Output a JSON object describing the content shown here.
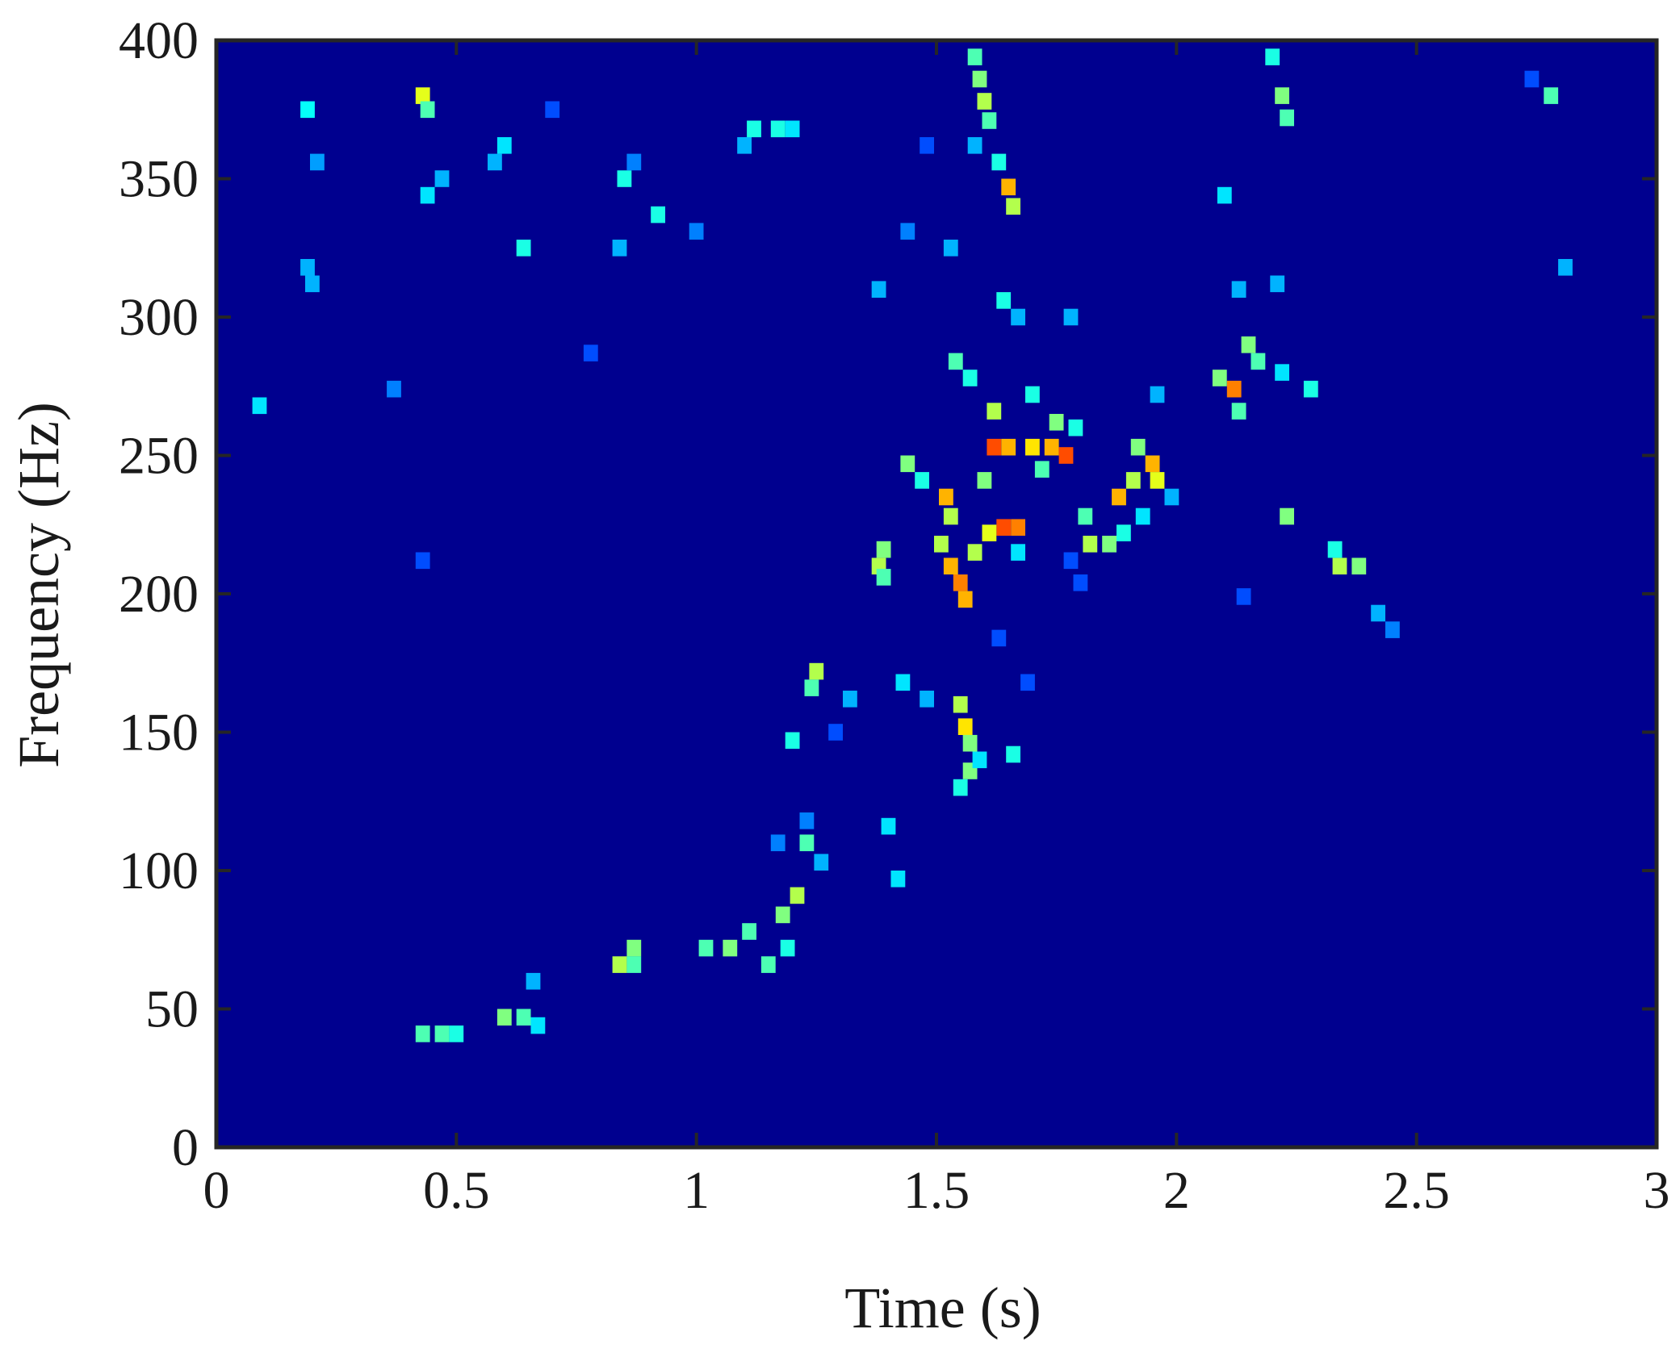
{
  "chart_data": {
    "type": "heatmap",
    "title": "",
    "xlabel": "Time (s)",
    "ylabel": "Frequency (Hz)",
    "xlim": [
      0,
      3
    ],
    "ylim": [
      0,
      400
    ],
    "x_ticks": [
      "0",
      "0.5",
      "1",
      "1.5",
      "2",
      "2.5",
      "3"
    ],
    "y_ticks": [
      "0",
      "50",
      "100",
      "150",
      "200",
      "250",
      "300",
      "350",
      "400"
    ],
    "x_tick_values": [
      0,
      0.5,
      1,
      1.5,
      2,
      2.5,
      3
    ],
    "y_tick_values": [
      0,
      50,
      100,
      150,
      200,
      250,
      300,
      350,
      400
    ],
    "colormap": "jet",
    "background_color": "#00008f",
    "cell_size": {
      "time_s": 0.03,
      "freq_hz": 6
    },
    "cells": [
      {
        "t": 0.09,
        "f": 268,
        "v": 0.35
      },
      {
        "t": 0.19,
        "f": 375,
        "v": 0.38
      },
      {
        "t": 0.19,
        "f": 318,
        "v": 0.3
      },
      {
        "t": 0.2,
        "f": 312,
        "v": 0.3
      },
      {
        "t": 0.21,
        "f": 356,
        "v": 0.28
      },
      {
        "t": 0.37,
        "f": 274,
        "v": 0.25
      },
      {
        "t": 0.43,
        "f": 380,
        "v": 0.6
      },
      {
        "t": 0.44,
        "f": 375,
        "v": 0.45
      },
      {
        "t": 0.44,
        "f": 344,
        "v": 0.35
      },
      {
        "t": 0.47,
        "f": 350,
        "v": 0.3
      },
      {
        "t": 0.43,
        "f": 212,
        "v": 0.2
      },
      {
        "t": 0.58,
        "f": 356,
        "v": 0.3
      },
      {
        "t": 0.6,
        "f": 362,
        "v": 0.35
      },
      {
        "t": 0.64,
        "f": 325,
        "v": 0.4
      },
      {
        "t": 0.7,
        "f": 375,
        "v": 0.2
      },
      {
        "t": 0.85,
        "f": 350,
        "v": 0.4
      },
      {
        "t": 0.87,
        "f": 356,
        "v": 0.25
      },
      {
        "t": 0.92,
        "f": 337,
        "v": 0.4
      },
      {
        "t": 0.84,
        "f": 325,
        "v": 0.3
      },
      {
        "t": 0.78,
        "f": 287,
        "v": 0.2
      },
      {
        "t": 1.0,
        "f": 331,
        "v": 0.25
      },
      {
        "t": 1.1,
        "f": 362,
        "v": 0.3
      },
      {
        "t": 1.12,
        "f": 368,
        "v": 0.4
      },
      {
        "t": 1.17,
        "f": 368,
        "v": 0.4
      },
      {
        "t": 1.2,
        "f": 368,
        "v": 0.35
      },
      {
        "t": 0.43,
        "f": 41,
        "v": 0.45
      },
      {
        "t": 0.47,
        "f": 41,
        "v": 0.45
      },
      {
        "t": 0.5,
        "f": 41,
        "v": 0.4
      },
      {
        "t": 0.6,
        "f": 47,
        "v": 0.5
      },
      {
        "t": 0.64,
        "f": 47,
        "v": 0.45
      },
      {
        "t": 0.67,
        "f": 44,
        "v": 0.35
      },
      {
        "t": 0.66,
        "f": 60,
        "v": 0.3
      },
      {
        "t": 0.84,
        "f": 66,
        "v": 0.55
      },
      {
        "t": 0.87,
        "f": 72,
        "v": 0.5
      },
      {
        "t": 0.87,
        "f": 66,
        "v": 0.45
      },
      {
        "t": 1.02,
        "f": 72,
        "v": 0.45
      },
      {
        "t": 1.07,
        "f": 72,
        "v": 0.5
      },
      {
        "t": 1.11,
        "f": 78,
        "v": 0.45
      },
      {
        "t": 1.15,
        "f": 66,
        "v": 0.45
      },
      {
        "t": 1.18,
        "f": 84,
        "v": 0.5
      },
      {
        "t": 1.21,
        "f": 91,
        "v": 0.55
      },
      {
        "t": 1.19,
        "f": 72,
        "v": 0.4
      },
      {
        "t": 1.23,
        "f": 110,
        "v": 0.45
      },
      {
        "t": 1.26,
        "f": 103,
        "v": 0.3
      },
      {
        "t": 1.2,
        "f": 147,
        "v": 0.4
      },
      {
        "t": 1.25,
        "f": 172,
        "v": 0.55
      },
      {
        "t": 1.24,
        "f": 166,
        "v": 0.45
      },
      {
        "t": 1.32,
        "f": 162,
        "v": 0.3
      },
      {
        "t": 1.4,
        "f": 116,
        "v": 0.35
      },
      {
        "t": 1.42,
        "f": 97,
        "v": 0.35
      },
      {
        "t": 1.39,
        "f": 216,
        "v": 0.5
      },
      {
        "t": 1.38,
        "f": 210,
        "v": 0.55
      },
      {
        "t": 1.39,
        "f": 206,
        "v": 0.45
      },
      {
        "t": 1.43,
        "f": 168,
        "v": 0.35
      },
      {
        "t": 1.48,
        "f": 162,
        "v": 0.3
      },
      {
        "t": 1.44,
        "f": 247,
        "v": 0.5
      },
      {
        "t": 1.47,
        "f": 241,
        "v": 0.4
      },
      {
        "t": 1.52,
        "f": 235,
        "v": 0.7
      },
      {
        "t": 1.53,
        "f": 228,
        "v": 0.55
      },
      {
        "t": 1.51,
        "f": 218,
        "v": 0.55
      },
      {
        "t": 1.53,
        "f": 210,
        "v": 0.7
      },
      {
        "t": 1.55,
        "f": 204,
        "v": 0.75
      },
      {
        "t": 1.56,
        "f": 198,
        "v": 0.7
      },
      {
        "t": 1.58,
        "f": 215,
        "v": 0.55
      },
      {
        "t": 1.54,
        "f": 284,
        "v": 0.45
      },
      {
        "t": 1.57,
        "f": 278,
        "v": 0.4
      },
      {
        "t": 1.55,
        "f": 160,
        "v": 0.55
      },
      {
        "t": 1.56,
        "f": 152,
        "v": 0.65
      },
      {
        "t": 1.57,
        "f": 146,
        "v": 0.5
      },
      {
        "t": 1.57,
        "f": 136,
        "v": 0.5
      },
      {
        "t": 1.55,
        "f": 130,
        "v": 0.4
      },
      {
        "t": 1.59,
        "f": 140,
        "v": 0.35
      },
      {
        "t": 1.66,
        "f": 142,
        "v": 0.4
      },
      {
        "t": 1.6,
        "f": 241,
        "v": 0.5
      },
      {
        "t": 1.62,
        "f": 253,
        "v": 0.8
      },
      {
        "t": 1.65,
        "f": 253,
        "v": 0.7
      },
      {
        "t": 1.62,
        "f": 266,
        "v": 0.55
      },
      {
        "t": 1.64,
        "f": 224,
        "v": 0.8
      },
      {
        "t": 1.67,
        "f": 224,
        "v": 0.75
      },
      {
        "t": 1.61,
        "f": 222,
        "v": 0.6
      },
      {
        "t": 1.67,
        "f": 215,
        "v": 0.35
      },
      {
        "t": 1.7,
        "f": 253,
        "v": 0.65
      },
      {
        "t": 1.74,
        "f": 253,
        "v": 0.7
      },
      {
        "t": 1.77,
        "f": 250,
        "v": 0.8
      },
      {
        "t": 1.72,
        "f": 245,
        "v": 0.45
      },
      {
        "t": 1.75,
        "f": 262,
        "v": 0.5
      },
      {
        "t": 1.79,
        "f": 260,
        "v": 0.4
      },
      {
        "t": 1.7,
        "f": 272,
        "v": 0.4
      },
      {
        "t": 1.81,
        "f": 228,
        "v": 0.45
      },
      {
        "t": 1.82,
        "f": 218,
        "v": 0.55
      },
      {
        "t": 1.86,
        "f": 218,
        "v": 0.5
      },
      {
        "t": 1.88,
        "f": 235,
        "v": 0.7
      },
      {
        "t": 1.91,
        "f": 241,
        "v": 0.55
      },
      {
        "t": 1.95,
        "f": 247,
        "v": 0.7
      },
      {
        "t": 1.92,
        "f": 253,
        "v": 0.5
      },
      {
        "t": 1.96,
        "f": 241,
        "v": 0.6
      },
      {
        "t": 1.89,
        "f": 222,
        "v": 0.4
      },
      {
        "t": 1.93,
        "f": 228,
        "v": 0.35
      },
      {
        "t": 1.99,
        "f": 235,
        "v": 0.3
      },
      {
        "t": 1.96,
        "f": 272,
        "v": 0.3
      },
      {
        "t": 1.58,
        "f": 394,
        "v": 0.45
      },
      {
        "t": 1.59,
        "f": 386,
        "v": 0.5
      },
      {
        "t": 1.6,
        "f": 378,
        "v": 0.55
      },
      {
        "t": 1.61,
        "f": 371,
        "v": 0.45
      },
      {
        "t": 1.63,
        "f": 356,
        "v": 0.4
      },
      {
        "t": 1.65,
        "f": 347,
        "v": 0.7
      },
      {
        "t": 1.66,
        "f": 340,
        "v": 0.55
      },
      {
        "t": 1.58,
        "f": 362,
        "v": 0.3
      },
      {
        "t": 1.53,
        "f": 325,
        "v": 0.3
      },
      {
        "t": 1.64,
        "f": 306,
        "v": 0.4
      },
      {
        "t": 1.67,
        "f": 300,
        "v": 0.3
      },
      {
        "t": 1.78,
        "f": 300,
        "v": 0.3
      },
      {
        "t": 1.48,
        "f": 362,
        "v": 0.2
      },
      {
        "t": 1.38,
        "f": 310,
        "v": 0.3
      },
      {
        "t": 1.44,
        "f": 331,
        "v": 0.25
      },
      {
        "t": 2.1,
        "f": 344,
        "v": 0.35
      },
      {
        "t": 2.2,
        "f": 394,
        "v": 0.4
      },
      {
        "t": 2.22,
        "f": 380,
        "v": 0.5
      },
      {
        "t": 2.23,
        "f": 372,
        "v": 0.45
      },
      {
        "t": 2.13,
        "f": 310,
        "v": 0.3
      },
      {
        "t": 2.21,
        "f": 312,
        "v": 0.3
      },
      {
        "t": 2.15,
        "f": 290,
        "v": 0.5
      },
      {
        "t": 2.17,
        "f": 284,
        "v": 0.45
      },
      {
        "t": 2.12,
        "f": 274,
        "v": 0.75
      },
      {
        "t": 2.09,
        "f": 278,
        "v": 0.5
      },
      {
        "t": 2.13,
        "f": 266,
        "v": 0.45
      },
      {
        "t": 2.22,
        "f": 280,
        "v": 0.35
      },
      {
        "t": 2.28,
        "f": 274,
        "v": 0.4
      },
      {
        "t": 2.23,
        "f": 228,
        "v": 0.5
      },
      {
        "t": 2.34,
        "f": 210,
        "v": 0.55
      },
      {
        "t": 2.38,
        "f": 210,
        "v": 0.5
      },
      {
        "t": 2.33,
        "f": 216,
        "v": 0.4
      },
      {
        "t": 2.42,
        "f": 193,
        "v": 0.3
      },
      {
        "t": 2.45,
        "f": 187,
        "v": 0.25
      },
      {
        "t": 2.14,
        "f": 199,
        "v": 0.2
      },
      {
        "t": 2.78,
        "f": 380,
        "v": 0.45
      },
      {
        "t": 2.81,
        "f": 318,
        "v": 0.3
      },
      {
        "t": 2.74,
        "f": 386,
        "v": 0.2
      },
      {
        "t": 1.78,
        "f": 212,
        "v": 0.2
      },
      {
        "t": 1.8,
        "f": 204,
        "v": 0.2
      },
      {
        "t": 1.29,
        "f": 150,
        "v": 0.2
      },
      {
        "t": 1.17,
        "f": 110,
        "v": 0.25
      },
      {
        "t": 1.63,
        "f": 184,
        "v": 0.2
      },
      {
        "t": 1.69,
        "f": 168,
        "v": 0.2
      },
      {
        "t": 1.23,
        "f": 118,
        "v": 0.25
      }
    ]
  }
}
